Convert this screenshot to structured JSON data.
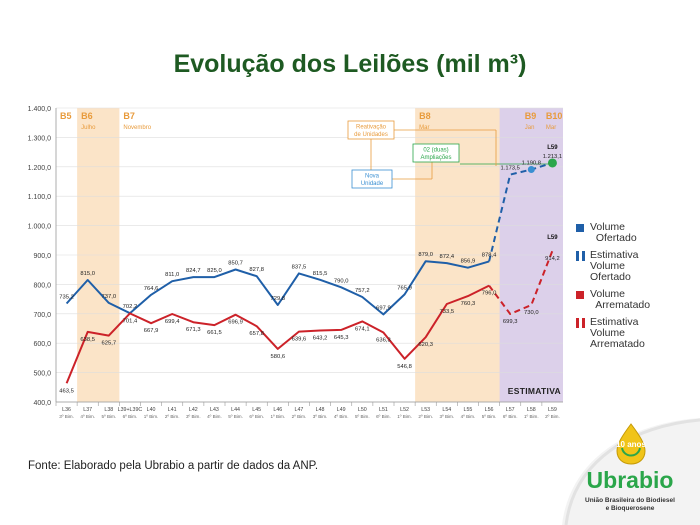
{
  "title": "Evolução dos Leilões (mil m³)",
  "source": "Fonte: Elaborado pela Ubrabio a partir de dados da ANP.",
  "colors": {
    "blue": "#1f5fa8",
    "red": "#cc2229",
    "green": "#2aa64a",
    "orange_band": "#fbe4c8",
    "purple_band": "#dcd0ea",
    "title": "#1e5a22",
    "annotation": "#e89b3c"
  },
  "chart_data": {
    "type": "line",
    "ylim": [
      400,
      1400
    ],
    "yticks": [
      "400,0",
      "500,0",
      "600,0",
      "700,0",
      "800,0",
      "900,0",
      "1.000,0",
      "1.100,0",
      "1.200,0",
      "1.300,0",
      "1.400,0"
    ],
    "categories": [
      [
        "L36",
        "3º Bim."
      ],
      [
        "L37",
        "4º Bim."
      ],
      [
        "L38",
        "5º Bim."
      ],
      [
        "L39+L39C",
        "6º Bim."
      ],
      [
        "L40",
        "1º Bim."
      ],
      [
        "L41",
        "2º Bim."
      ],
      [
        "L42",
        "3º Bim."
      ],
      [
        "L43",
        "4º Bim."
      ],
      [
        "L44",
        "5º Bim."
      ],
      [
        "L45",
        "6º Bim."
      ],
      [
        "L46",
        "1º Bim."
      ],
      [
        "L47",
        "2º Bim."
      ],
      [
        "L48",
        "3º Bim."
      ],
      [
        "L49",
        "4º Bim."
      ],
      [
        "L50",
        "5º Bim."
      ],
      [
        "L51",
        "6º Bim."
      ],
      [
        "L52",
        "1º Bim."
      ],
      [
        "L53",
        "2º Bim."
      ],
      [
        "L54",
        "3º Bim."
      ],
      [
        "L55",
        "4º Bim."
      ],
      [
        "L56",
        "5º Bim."
      ],
      [
        "L57",
        "6º Bim."
      ],
      [
        "L58",
        "1º Bim."
      ],
      [
        "L59",
        "2º Bim."
      ]
    ],
    "series": [
      {
        "name": "Volume Ofertado",
        "values": [
          735.2,
          815.0,
          737.0,
          702.2,
          764.6,
          811.0,
          824.7,
          825.0,
          850.7,
          827.8,
          729.8,
          837.5,
          815.5,
          790.0,
          757.2,
          697.9,
          765.9,
          879.0,
          872.4,
          856.9,
          878.4,
          null,
          null,
          null
        ],
        "labels": [
          "735,2",
          "815,0",
          "737,0",
          "702,2",
          "764,6",
          "811,0",
          "824,7",
          "825,0",
          "850,7",
          "827,8",
          "729,8",
          "837,5",
          "815,5",
          "790,0",
          "757,2",
          "697,9",
          "765,9",
          "879,0",
          "872,4",
          "856,9",
          "878,4",
          "",
          "",
          ""
        ]
      },
      {
        "name": "Estimativa Volume Ofertado",
        "values": [
          null,
          null,
          null,
          null,
          null,
          null,
          null,
          null,
          null,
          null,
          null,
          null,
          null,
          null,
          null,
          null,
          null,
          null,
          null,
          null,
          878.4,
          1173.5,
          1190.8,
          1213.1
        ],
        "labels": [
          "",
          "",
          "",
          "",
          "",
          "",
          "",
          "",
          "",
          "",
          "",
          "",
          "",
          "",
          "",
          "",
          "",
          "",
          "",
          "",
          "",
          "1.173,5",
          "1.190,8",
          "1.213,1"
        ]
      },
      {
        "name": "Volume Arrematado",
        "values": [
          463.5,
          638.5,
          625.7,
          701.4,
          667.9,
          699.4,
          671.3,
          661.5,
          696.9,
          657.8,
          580.6,
          639.6,
          643.2,
          645.3,
          674.1,
          636.3,
          546.8,
          620.3,
          733.5,
          760.3,
          796.0,
          null,
          null,
          null
        ],
        "labels": [
          "463,5",
          "638,5",
          "625,7",
          "701,4",
          "667,9",
          "699,4",
          "671,3",
          "661,5",
          "696,9",
          "657,8",
          "580,6",
          "639,6",
          "643,2",
          "645,3",
          "674,1",
          "636,3",
          "546,8",
          "620,3",
          "733,5",
          "760,3",
          "796,0",
          "",
          "",
          ""
        ]
      },
      {
        "name": "Estimativa Volume Arrematado",
        "values": [
          null,
          null,
          null,
          null,
          null,
          null,
          null,
          null,
          null,
          null,
          null,
          null,
          null,
          null,
          null,
          null,
          null,
          null,
          null,
          null,
          796.0,
          699.3,
          730.0,
          914.2
        ],
        "labels": [
          "",
          "",
          "",
          "",
          "",
          "",
          "",
          "",
          "",
          "",
          "",
          "",
          "",
          "",
          "",
          "",
          "",
          "",
          "",
          "",
          "",
          "699,3",
          "730,0",
          "914,2"
        ]
      }
    ],
    "bands": [
      {
        "label": "B5",
        "sub": "",
        "from": 0,
        "to": 0,
        "shade": false
      },
      {
        "label": "B6",
        "sub": "Julho",
        "from": 1,
        "to": 2,
        "shade": true
      },
      {
        "label": "B7",
        "sub": "Novembro",
        "from": 3,
        "to": 16,
        "shade": false
      },
      {
        "label": "B8",
        "sub": "Mar",
        "from": 17,
        "to": 21,
        "shade": true
      },
      {
        "label": "B9",
        "sub": "Jan",
        "from": 22,
        "to": 22,
        "shade": false
      },
      {
        "label": "B10",
        "sub": "Mar",
        "from": 23,
        "to": 23,
        "shade": false
      }
    ],
    "estimate_region_label": "ESTIMATIVA",
    "annotations": [
      {
        "text": [
          "Reativação",
          "de Unidades"
        ],
        "color": "orange"
      },
      {
        "text": [
          "02 (duas)",
          "Ampliações"
        ],
        "color": "green"
      },
      {
        "text": [
          "Nova",
          "Unidade"
        ],
        "color": "blue"
      }
    ],
    "l59_tags": [
      "L59",
      "L59"
    ]
  },
  "legend": [
    {
      "label": "Volume\n  Ofertado",
      "color": "#1f5fa8",
      "dashed": false
    },
    {
      "label": "Estimativa\nVolume\nOfertado",
      "color": "#1f5fa8",
      "dashed": true
    },
    {
      "label": "Volume\n  Arrematado",
      "color": "#cc2229",
      "dashed": false
    },
    {
      "label": "Estimativa\nVolume\nArrematado",
      "color": "#cc2229",
      "dashed": true
    }
  ],
  "logo": {
    "name": "Ubrabio",
    "badge": "10 anos",
    "tagline": [
      "União Brasileira do Biodiesel",
      "e Bioquerosene"
    ]
  }
}
